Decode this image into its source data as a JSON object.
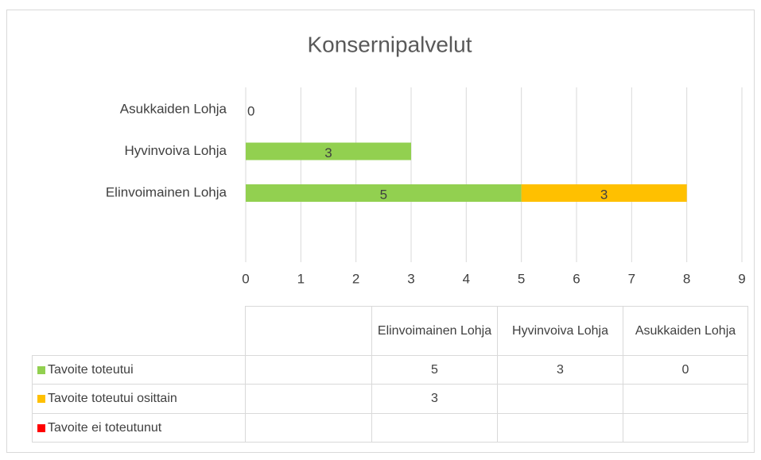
{
  "chart_data": {
    "type": "stacked-bar-horizontal",
    "title": "Konsernipalvelut",
    "categories": [
      "Elinvoimainen Lohja",
      "Hyvinvoiva Lohja",
      "Asukkaiden Lohja"
    ],
    "series": [
      {
        "name": "Tavoite toteutui",
        "color": "#92d050",
        "values": [
          5,
          3,
          0
        ]
      },
      {
        "name": "Tavoite toteutui osittain",
        "color": "#ffc000",
        "values": [
          3,
          null,
          null
        ]
      },
      {
        "name": "Tavoite ei toteutunut",
        "color": "#ff0000",
        "values": [
          null,
          null,
          null
        ]
      }
    ],
    "xlim": [
      0,
      9
    ],
    "xticks": [
      0,
      1,
      2,
      3,
      4,
      5,
      6,
      7,
      8,
      9
    ],
    "grid": true,
    "data_table": true
  }
}
